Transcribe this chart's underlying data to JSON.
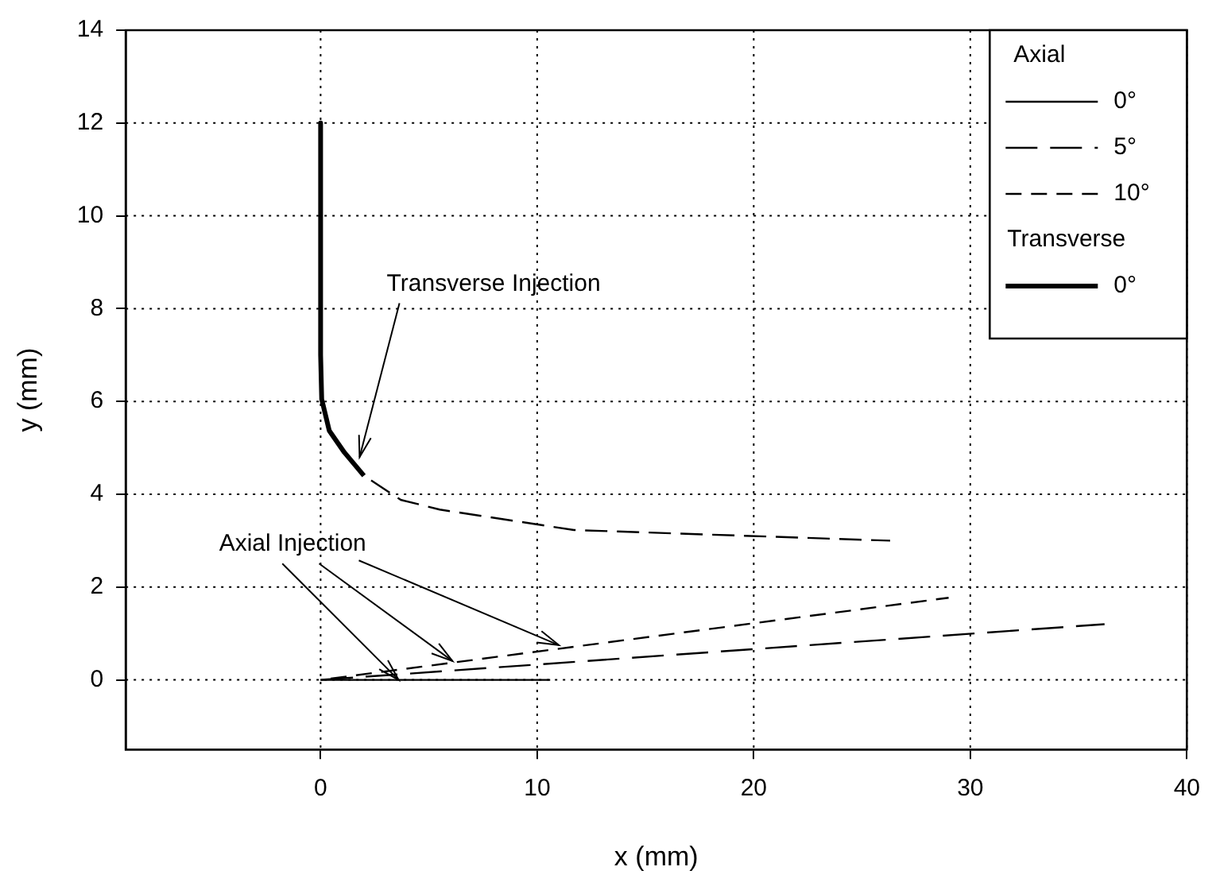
{
  "chart_data": {
    "type": "line",
    "xlabel": "x (mm)",
    "ylabel": "y (mm)",
    "xlim": [
      -9,
      40
    ],
    "ylim": [
      -1.5,
      14
    ],
    "xticks": [
      0,
      10,
      20,
      30,
      40
    ],
    "yticks": [
      0,
      2,
      4,
      6,
      8,
      10,
      12,
      14
    ],
    "grid": true,
    "legend": "top right",
    "legend_title": "Axial",
    "marker": "none",
    "series": [
      {
        "name": "0°",
        "color": "#000000",
        "line_style": "solid",
        "x": [
          0,
          10.6
        ],
        "values": [
          0,
          0
        ]
      },
      {
        "name": "5°",
        "color": "#000000",
        "line_style": "dashed",
        "x": [
          0,
          36.2
        ],
        "values": [
          0,
          1.2
        ]
      },
      {
        "name": "10°",
        "color": "#000000",
        "line_style": "dashed",
        "x": [
          0,
          29
        ],
        "values": [
          0,
          1.77
        ]
      },
      {
        "name": "0°",
        "color": "#000000",
        "line_style": "solid",
        "x": [
          0,
          0,
          0.05,
          0.4,
          1.1,
          2.0
        ],
        "values": [
          12,
          7,
          6.05,
          5.37,
          4.9,
          4.4
        ]
      },
      {
        "color": "#000000",
        "line_style": "dashed",
        "x": [
          2.0,
          3.7,
          5.5,
          11.7,
          26.3
        ],
        "values": [
          4.4,
          3.88,
          3.67,
          3.23,
          3.0
        ]
      }
    ],
    "annotations": [
      "Transverse",
      {
        "text": "Transverse Injection",
        "x": 1.8,
        "y": 4.8
      },
      {
        "text": "Axial Injection",
        "x": 11,
        "y": 0.75
      }
    ]
  }
}
